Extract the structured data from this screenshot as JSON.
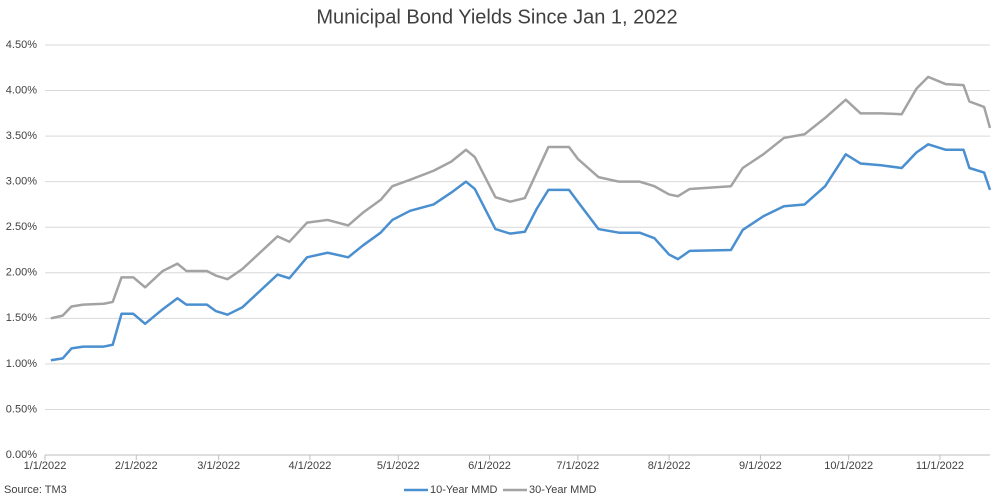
{
  "chart_data": {
    "type": "line",
    "title": "Municipal Bond Yields Since Jan 1, 2022",
    "source": "Source: TM3",
    "x": [
      "1/3/2022",
      "1/7/2022",
      "1/10/2022",
      "1/14/2022",
      "1/21/2022",
      "1/24/2022",
      "1/27/2022",
      "1/31/2022",
      "2/4/2022",
      "2/10/2022",
      "2/15/2022",
      "2/18/2022",
      "2/25/2022",
      "2/28/2022",
      "3/4/2022",
      "3/9/2022",
      "3/15/2022",
      "3/21/2022",
      "3/25/2022",
      "3/31/2022",
      "4/7/2022",
      "4/14/2022",
      "4/19/2022",
      "4/25/2022",
      "4/29/2022",
      "5/5/2022",
      "5/13/2022",
      "5/19/2022",
      "5/24/2022",
      "5/27/2022",
      "6/3/2022",
      "6/8/2022",
      "6/13/2022",
      "6/17/2022",
      "6/21/2022",
      "6/28/2022",
      "7/1/2022",
      "7/8/2022",
      "7/15/2022",
      "7/22/2022",
      "7/27/2022",
      "8/1/2022",
      "8/4/2022",
      "8/8/2022",
      "8/22/2022",
      "8/26/2022",
      "9/2/2022",
      "9/9/2022",
      "9/16/2022",
      "9/23/2022",
      "9/30/2022",
      "10/5/2022",
      "10/12/2022",
      "10/19/2022",
      "10/24/2022",
      "10/28/2022",
      "11/3/2022",
      "11/9/2022",
      "11/11/2022",
      "11/16/2022",
      "11/18/2022"
    ],
    "series": [
      {
        "name": "10-Year MMD",
        "color": "#4a8fcf",
        "values": [
          1.04,
          1.06,
          1.17,
          1.19,
          1.19,
          1.21,
          1.55,
          1.55,
          1.44,
          1.6,
          1.72,
          1.65,
          1.65,
          1.58,
          1.54,
          1.62,
          1.8,
          1.98,
          1.94,
          2.17,
          2.22,
          2.17,
          2.3,
          2.44,
          2.58,
          2.68,
          2.75,
          2.88,
          3.0,
          2.92,
          2.48,
          2.43,
          2.45,
          2.7,
          2.91,
          2.91,
          2.78,
          2.48,
          2.44,
          2.44,
          2.38,
          2.2,
          2.15,
          2.24,
          2.25,
          2.47,
          2.62,
          2.73,
          2.75,
          2.95,
          3.3,
          3.2,
          3.18,
          3.15,
          3.32,
          3.41,
          3.35,
          3.35,
          3.15,
          3.1,
          2.91
        ]
      },
      {
        "name": "30-Year MMD",
        "color": "#a3a3a3",
        "values": [
          1.5,
          1.53,
          1.63,
          1.65,
          1.66,
          1.68,
          1.95,
          1.95,
          1.84,
          2.02,
          2.1,
          2.02,
          2.02,
          1.97,
          1.93,
          2.04,
          2.22,
          2.4,
          2.34,
          2.55,
          2.58,
          2.52,
          2.66,
          2.8,
          2.95,
          3.02,
          3.12,
          3.22,
          3.35,
          3.27,
          2.83,
          2.78,
          2.82,
          3.1,
          3.38,
          3.38,
          3.25,
          3.05,
          3.0,
          3.0,
          2.95,
          2.86,
          2.84,
          2.92,
          2.95,
          3.15,
          3.3,
          3.48,
          3.52,
          3.7,
          3.9,
          3.75,
          3.75,
          3.74,
          4.02,
          4.15,
          4.07,
          4.06,
          3.88,
          3.82,
          3.59
        ]
      }
    ],
    "xlim": [
      "1/1/2022",
      "11/18/2022"
    ],
    "xticks": [
      "1/1/2022",
      "2/1/2022",
      "3/1/2022",
      "4/1/2022",
      "5/1/2022",
      "6/1/2022",
      "7/1/2022",
      "8/1/2022",
      "9/1/2022",
      "10/1/2022",
      "11/1/2022"
    ],
    "ylim": [
      0,
      4.5
    ],
    "yticks": [
      {
        "value": 0,
        "label": "0.00%"
      },
      {
        "value": 0.5,
        "label": "0.50%"
      },
      {
        "value": 1,
        "label": "1.00%"
      },
      {
        "value": 1.5,
        "label": "1.50%"
      },
      {
        "value": 2,
        "label": "2.00%"
      },
      {
        "value": 2.5,
        "label": "2.50%"
      },
      {
        "value": 3,
        "label": "3.00%"
      },
      {
        "value": 3.5,
        "label": "3.50%"
      },
      {
        "value": 4,
        "label": "4.00%"
      },
      {
        "value": 4.5,
        "label": "4.50%"
      }
    ],
    "grid": true,
    "legend": "bottom"
  }
}
